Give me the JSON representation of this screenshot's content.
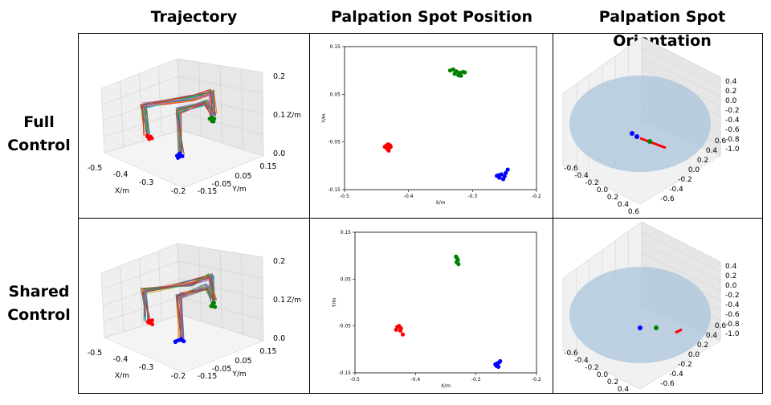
{
  "columns": [
    {
      "title": "Trajectory"
    },
    {
      "title": "Palpation Spot Position"
    },
    {
      "title": "Palpation Spot Orientation"
    }
  ],
  "rows": [
    {
      "line1": "Full",
      "line2": "Control"
    },
    {
      "line1": "Shared",
      "line2": "Control"
    }
  ],
  "colors": {
    "red": "#ff0000",
    "green": "#008000",
    "blue": "#0000ff",
    "sphere": "#a9c4dc"
  },
  "chart_data": [
    {
      "type": "scatter",
      "panel": "Full Control - Palpation Spot Position",
      "xlabel": "X/m",
      "ylabel": "Y/m",
      "xlim": [
        -0.5,
        -0.2
      ],
      "ylim": [
        -0.15,
        0.15
      ],
      "xticks": [
        "-0.5",
        "-0.4",
        "-0.3",
        "-0.2"
      ],
      "yticks": [
        "0.15",
        "0.05",
        "-0.05",
        "-0.15"
      ],
      "series": [
        {
          "color": "red",
          "x": [
            -0.435,
            -0.432,
            -0.43,
            -0.437,
            -0.433,
            -0.429,
            -0.431,
            -0.434,
            -0.428
          ],
          "y": [
            -0.058,
            -0.055,
            -0.062,
            -0.06,
            -0.065,
            -0.057,
            -0.068,
            -0.063,
            -0.06
          ]
        },
        {
          "color": "green",
          "x": [
            -0.335,
            -0.33,
            -0.325,
            -0.32,
            -0.315,
            -0.328,
            -0.322,
            -0.318,
            -0.312
          ],
          "y": [
            0.1,
            0.102,
            0.098,
            0.095,
            0.097,
            0.093,
            0.09,
            0.089,
            0.096
          ]
        },
        {
          "color": "blue",
          "x": [
            -0.26,
            -0.255,
            -0.25,
            -0.248,
            -0.258,
            -0.252,
            -0.245,
            -0.262
          ],
          "y": [
            -0.12,
            -0.118,
            -0.122,
            -0.115,
            -0.125,
            -0.128,
            -0.108,
            -0.121
          ]
        }
      ]
    },
    {
      "type": "scatter",
      "panel": "Shared Control - Palpation Spot Position",
      "xlabel": "X/m",
      "ylabel": "Y/m",
      "xlim": [
        -0.5,
        -0.2
      ],
      "ylim": [
        -0.15,
        0.15
      ],
      "xticks": [
        "-0.5",
        "-0.4",
        "-0.3",
        "-0.2"
      ],
      "yticks": [
        "0.15",
        "0.05",
        "-0.05",
        "-0.15"
      ],
      "series": [
        {
          "color": "red",
          "x": [
            -0.43,
            -0.427,
            -0.424,
            -0.432,
            -0.425,
            -0.421
          ],
          "y": [
            -0.052,
            -0.05,
            -0.055,
            -0.058,
            -0.06,
            -0.068
          ]
        },
        {
          "color": "green",
          "x": [
            -0.333,
            -0.331,
            -0.33,
            -0.332,
            -0.329
          ],
          "y": [
            0.098,
            0.094,
            0.09,
            0.086,
            0.082
          ]
        },
        {
          "color": "blue",
          "x": [
            -0.268,
            -0.265,
            -0.262,
            -0.26,
            -0.266,
            -0.263
          ],
          "y": [
            -0.132,
            -0.13,
            -0.128,
            -0.125,
            -0.135,
            -0.137
          ]
        }
      ]
    },
    {
      "type": "line",
      "panel": "Trajectory (3D)",
      "xlabel": "X/m",
      "ylabel": "Y/m",
      "zlabel": "Z/m",
      "xticks": [
        "-0.5",
        "-0.4",
        "-0.3",
        "-0.2"
      ],
      "yticks": [
        "0.15",
        "0.05",
        "-0.05",
        "-0.15"
      ],
      "zticks": [
        "0.2",
        "0.1",
        "0.0"
      ]
    },
    {
      "type": "scatter",
      "panel": "Palpation Spot Orientation (3D)",
      "xticks": [
        "-0.6",
        "-0.4",
        "-0.2",
        "0.0",
        "0.2",
        "0.4",
        "0.6"
      ],
      "yticks": [
        "0.6",
        "0.4",
        "0.2",
        "0.0",
        "-0.2",
        "-0.4",
        "-0.6"
      ],
      "zticks": [
        "0.4",
        "0.2",
        "0.0",
        "-0.2",
        "-0.4",
        "-0.6",
        "-0.8",
        "-1.0"
      ]
    }
  ]
}
